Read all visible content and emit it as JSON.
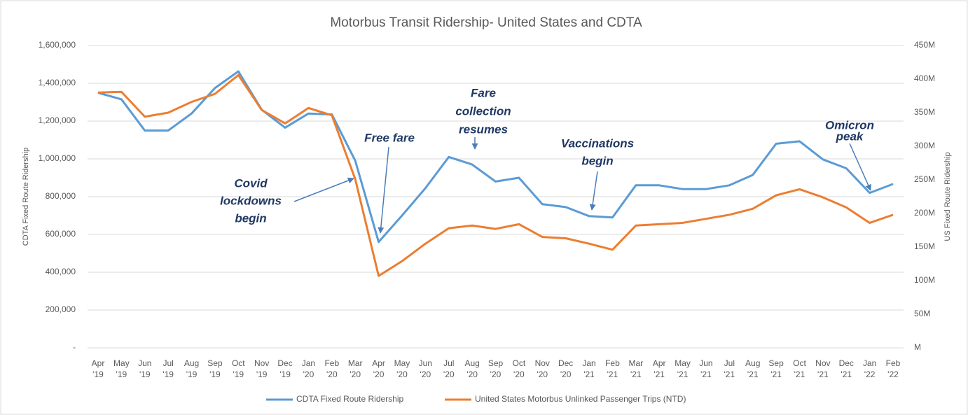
{
  "chart_data": {
    "type": "line",
    "title": "Motorbus Transit Ridership- United States and CDTA",
    "y_label": "CDTA Fixed Route Ridership",
    "y2_label": "US Fixed Route Ridership",
    "categories": [
      "Apr '19",
      "May '19",
      "Jun '19",
      "Jul '19",
      "Aug '19",
      "Sep '19",
      "Oct '19",
      "Nov '19",
      "Dec '19",
      "Jan '20",
      "Feb '20",
      "Mar '20",
      "Apr '20",
      "May '20",
      "Jun '20",
      "Jul '20",
      "Aug '20",
      "Sep '20",
      "Oct '20",
      "Nov '20",
      "Dec '20",
      "Jan '21",
      "Feb '21",
      "Mar '21",
      "Apr '21",
      "May '21",
      "Jun '21",
      "Jul '21",
      "Aug '21",
      "Sep '21",
      "Oct '21",
      "Nov '21",
      "Dec '21",
      "Jan '22",
      "Feb '22"
    ],
    "series": [
      {
        "name": "CDTA Fixed Route Ridership",
        "color": "#5b9bd5",
        "values": [
          1350000,
          1315000,
          1150000,
          1150000,
          1240000,
          1375000,
          1463000,
          1260000,
          1165000,
          1240000,
          1235000,
          990000,
          560000,
          700000,
          845000,
          1010000,
          970000,
          880000,
          900000,
          760000,
          745000,
          697000,
          690000,
          860000,
          860000,
          840000,
          840000,
          860000,
          915000,
          1080000,
          1093000,
          997000,
          950000,
          820000,
          867000
        ]
      },
      {
        "name": "United States Motorbus Unlinked Passenger Trips (NTD)",
        "color": "#ed7d31",
        "axis": "y2",
        "values": [
          380000000,
          381000000,
          344000000,
          350000000,
          366000000,
          378000000,
          406000000,
          354000000,
          334000000,
          357000000,
          346000000,
          251000000,
          107000000,
          129000000,
          155000000,
          178000000,
          182000000,
          177000000,
          184000000,
          165000000,
          163000000,
          155000000,
          146000000,
          182000000,
          184000000,
          186000000,
          192000000,
          198000000,
          207000000,
          227000000,
          236000000,
          224000000,
          209000000,
          186000000,
          198000000
        ]
      }
    ],
    "ylim": [
      0,
      1600000
    ],
    "yticks": [
      {
        "value": 0,
        "label": "-"
      },
      {
        "value": 200000,
        "label": "200,000"
      },
      {
        "value": 400000,
        "label": "400,000"
      },
      {
        "value": 600000,
        "label": "600,000"
      },
      {
        "value": 800000,
        "label": "800,000"
      },
      {
        "value": 1000000,
        "label": "1,000,000"
      },
      {
        "value": 1200000,
        "label": "1,200,000"
      },
      {
        "value": 1400000,
        "label": "1,400,000"
      },
      {
        "value": 1600000,
        "label": "1,600,000"
      }
    ],
    "y2lim": [
      0,
      450000000
    ],
    "y2ticks": [
      {
        "value": 0,
        "label": "M"
      },
      {
        "value": 50000000,
        "label": "50M"
      },
      {
        "value": 100000000,
        "label": "100M"
      },
      {
        "value": 150000000,
        "label": "150M"
      },
      {
        "value": 200000000,
        "label": "200M"
      },
      {
        "value": 250000000,
        "label": "250M"
      },
      {
        "value": 300000000,
        "label": "300M"
      },
      {
        "value": 350000000,
        "label": "350M"
      },
      {
        "value": 400000000,
        "label": "400M"
      },
      {
        "value": 450000000,
        "label": "450M"
      }
    ],
    "grid": true,
    "legend": "bottom",
    "annotations": [
      {
        "lines": [
          "Covid",
          "lockdowns",
          "begin"
        ]
      },
      {
        "lines": [
          "Free fare"
        ]
      },
      {
        "lines": [
          "Fare",
          "collection",
          "resumes"
        ]
      },
      {
        "lines": [
          "Vaccinations",
          "begin"
        ]
      },
      {
        "lines": [
          "Omicron",
          "peak"
        ]
      }
    ]
  }
}
